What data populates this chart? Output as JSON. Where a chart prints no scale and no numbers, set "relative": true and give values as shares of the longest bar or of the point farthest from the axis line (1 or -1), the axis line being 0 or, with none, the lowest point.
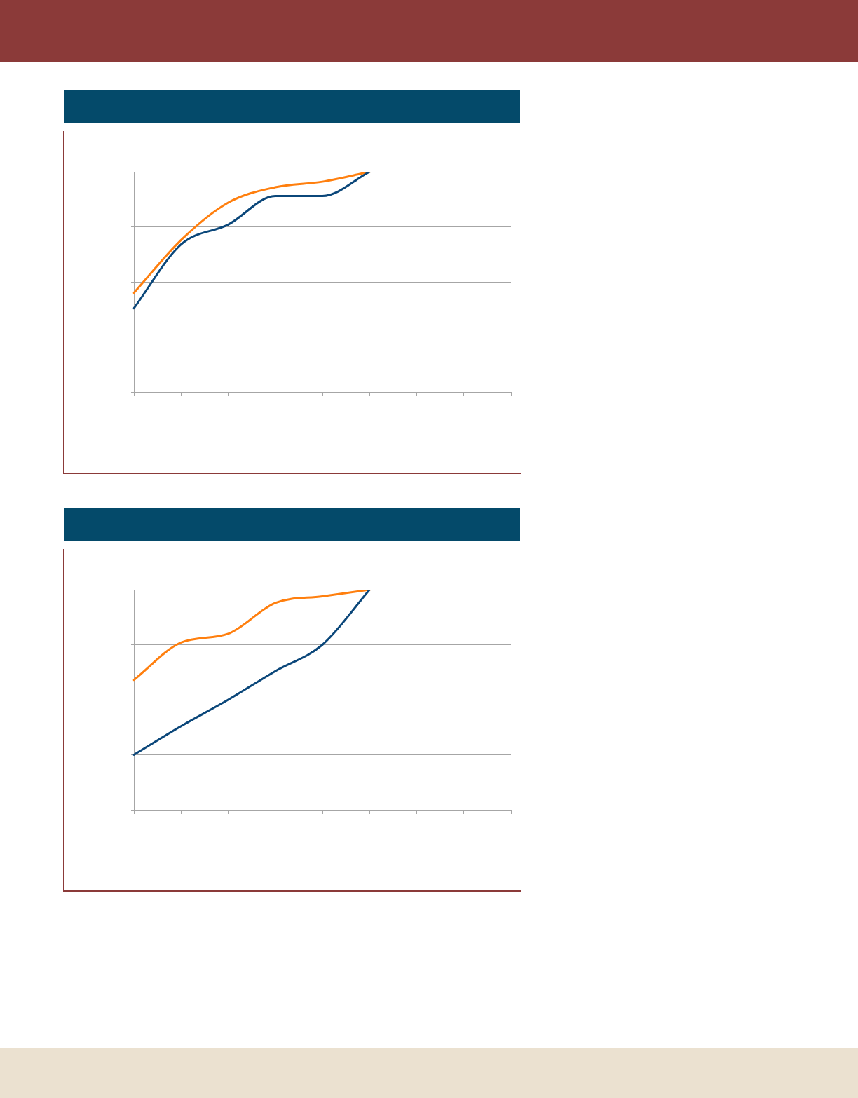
{
  "chart_data": [
    {
      "type": "line",
      "relative": true,
      "grid": "y",
      "marker": "none",
      "categories": [
        null,
        null,
        null,
        null,
        null,
        null,
        null,
        null,
        null
      ],
      "series": [
        {
          "color": "#0b477a",
          "values": [
            0.38,
            0.67,
            0.76,
            0.89,
            0.89,
            1,
            null,
            null,
            null
          ]
        },
        {
          "color": "#ff7f0e",
          "values": [
            0.45,
            0.69,
            0.86,
            0.93,
            0.955,
            1,
            null,
            null,
            null
          ]
        }
      ]
    },
    {
      "type": "line",
      "relative": true,
      "grid": "y",
      "marker": "none",
      "categories": [
        null,
        null,
        null,
        null,
        null,
        null,
        null,
        null,
        null
      ],
      "series": [
        {
          "color": "#0b477a",
          "values": [
            0.25,
            0.38,
            0.5,
            0.63,
            0.75,
            1,
            null,
            null,
            null
          ]
        },
        {
          "color": "#ff7f0e",
          "values": [
            0.59,
            0.76,
            0.8,
            0.94,
            0.97,
            1,
            null,
            null,
            null
          ]
        }
      ]
    }
  ]
}
